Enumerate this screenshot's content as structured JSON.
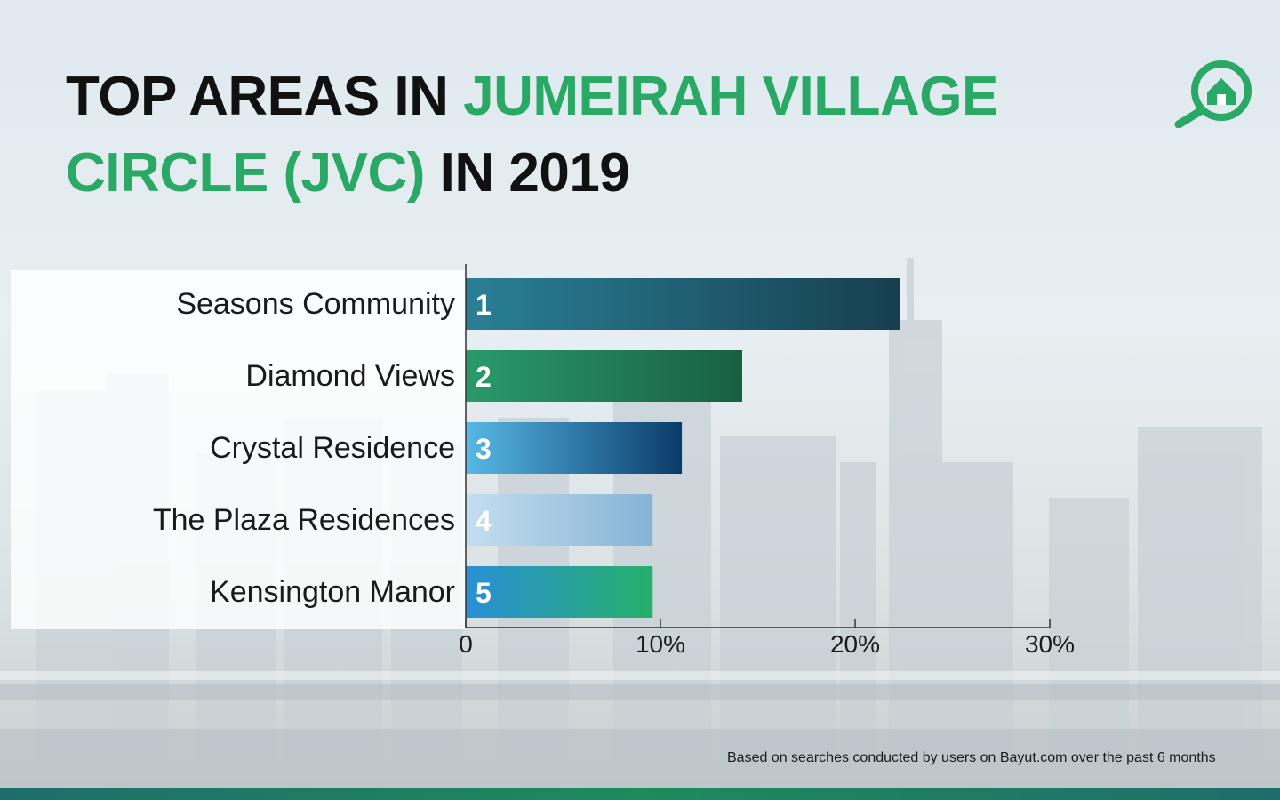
{
  "title": {
    "part1": "TOP AREAS IN ",
    "part2": "JUMEIRAH VILLAGE",
    "part3": "CIRCLE (JVC)",
    "part4": " IN 2019"
  },
  "logo": {
    "icon": "house-magnifier-icon",
    "color": "#2aa866"
  },
  "chart_data": {
    "type": "bar",
    "orientation": "horizontal",
    "categories": [
      "Seasons Community",
      "Diamond Views",
      "Crystal Residence",
      "The Plaza Residences",
      "Kensington Manor"
    ],
    "ranks": [
      "1",
      "2",
      "3",
      "4",
      "5"
    ],
    "values": [
      22.3,
      14.2,
      11.1,
      9.6,
      9.6
    ],
    "unit": "%",
    "xlim": [
      0,
      30
    ],
    "xticks": [
      "0",
      "10%",
      "20%",
      "30%"
    ],
    "bar_colors": [
      [
        "#2a7f96",
        "#163f4f"
      ],
      [
        "#2a9a6a",
        "#186040"
      ],
      [
        "#58b8e6",
        "#0a3c6a"
      ],
      [
        "#c4def0",
        "#86b4d6"
      ],
      [
        "#2a8fd6",
        "#26b06a"
      ]
    ]
  },
  "footnote": "Based on searches conducted by users on Bayut.com over the past 6 months",
  "colors": {
    "accent": "#2aa866",
    "title": "#111111"
  }
}
